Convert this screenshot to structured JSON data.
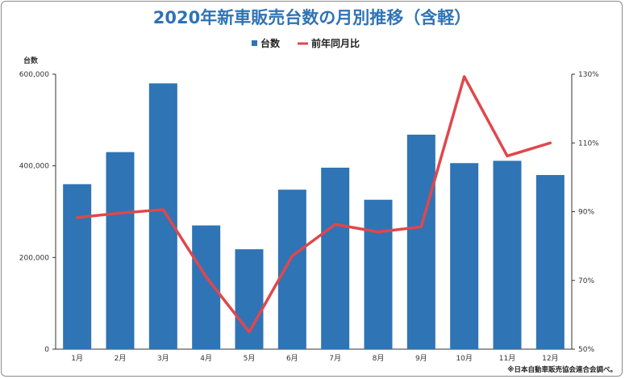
{
  "chart_data": {
    "type": "bar",
    "title": "2020年新車販売台数の月別推移（含軽）",
    "categories": [
      "1月",
      "2月",
      "3月",
      "4月",
      "5月",
      "6月",
      "7月",
      "8月",
      "9月",
      "10月",
      "11月",
      "12月"
    ],
    "series": [
      {
        "name": "台数",
        "type": "bar",
        "axis": "left",
        "values": [
          360000,
          430000,
          580000,
          270000,
          218000,
          348000,
          396000,
          326000,
          468000,
          406000,
          411000,
          380000
        ]
      },
      {
        "name": "前年同月比",
        "type": "line",
        "axis": "right",
        "values": [
          88.3,
          89.6,
          90.6,
          71.0,
          55.0,
          77.1,
          86.3,
          84.1,
          85.6,
          129.3,
          106.2,
          110.0
        ]
      }
    ],
    "ylabel": "台数",
    "ylim": [
      0,
      600000
    ],
    "yticks": [
      "0",
      "200,000",
      "400,000",
      "600,000"
    ],
    "y2lim": [
      50,
      130
    ],
    "y2ticks": [
      "50%",
      "70%",
      "90%",
      "110%",
      "130%"
    ],
    "legend_position": "top",
    "grid": false,
    "colors": {
      "bar": "#2f74b5",
      "line": "#e0474c",
      "title": "#2f73b5",
      "axis": "#333333"
    }
  },
  "source_note": "※日本自動車販売協会連合会調べ。"
}
